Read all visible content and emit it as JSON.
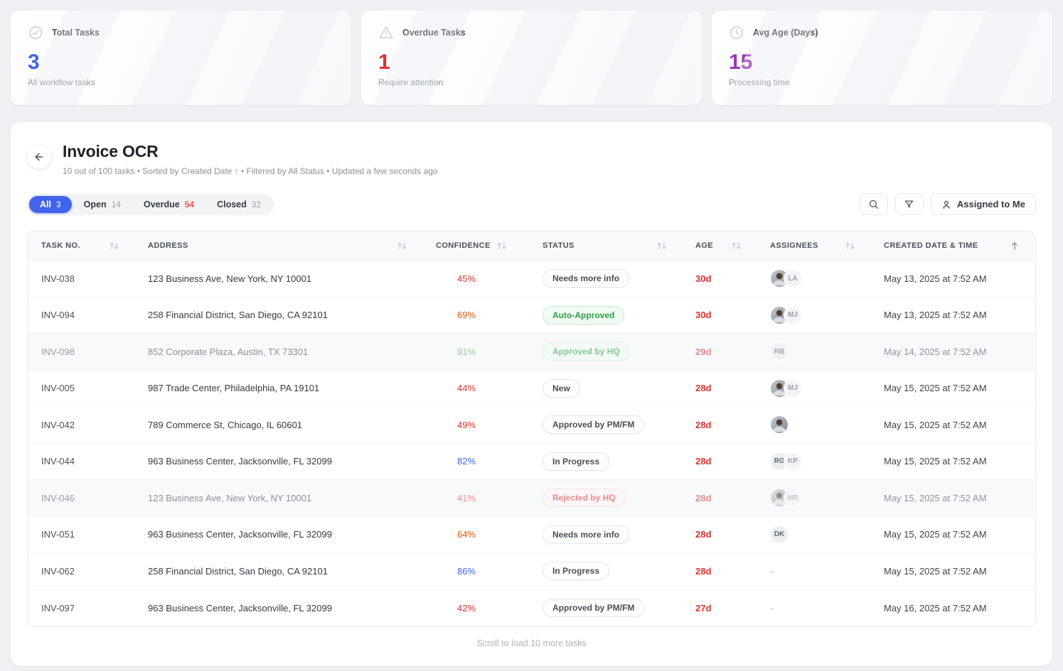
{
  "colors": {
    "accent_blue": "#4263eb",
    "red": "#e03131",
    "orange": "#e8590c",
    "green": "#37b24d",
    "purple": "#9c36b5"
  },
  "stats": [
    {
      "icon": "check-circle-icon",
      "label": "Total Tasks",
      "value": "3",
      "value_color": "#4263eb",
      "sub": "All workflow tasks"
    },
    {
      "icon": "alert-triangle-icon",
      "label": "Overdue Tasks",
      "value": "1",
      "value_color": "#e03131",
      "sub": "Require attention"
    },
    {
      "icon": "clock-icon",
      "label": "Avg Age (Days)",
      "value": "15",
      "value_color": "#9c36b5",
      "sub": "Processing time"
    }
  ],
  "header": {
    "title": "Invoice OCR",
    "subtitle": "10 out of 100 tasks • Sorted by Created Date ↑ • Filtered by All Status • Updated a few seconds ago"
  },
  "tabs": [
    {
      "label": "All",
      "count": "3",
      "active": true,
      "count_color": ""
    },
    {
      "label": "Open",
      "count": "14",
      "active": false,
      "count_color": ""
    },
    {
      "label": "Overdue",
      "count": "54",
      "active": false,
      "count_color": "#fa5252"
    },
    {
      "label": "Closed",
      "count": "32",
      "active": false,
      "count_color": ""
    }
  ],
  "toolbar": {
    "assigned_label": "Assigned to Me"
  },
  "table": {
    "columns": [
      {
        "label": "TASK NO.",
        "sort": "both"
      },
      {
        "label": "ADDRESS",
        "sort": "both"
      },
      {
        "label": "CONFIDENCE",
        "sort": "both"
      },
      {
        "label": "STATUS",
        "sort": "both"
      },
      {
        "label": "AGE",
        "sort": "both"
      },
      {
        "label": "ASSIGNEES",
        "sort": "both"
      },
      {
        "label": "CREATED DATE & TIME",
        "sort": "asc"
      }
    ],
    "rows": [
      {
        "task_no": "INV-038",
        "address": "123 Business Ave, New York, NY 10001",
        "confidence": "45%",
        "confidence_color": "#e03131",
        "status": "Needs more info",
        "status_variant": "neutral",
        "age": "30d",
        "age_color": "#e03131",
        "assignees": [
          {
            "type": "photo"
          },
          {
            "type": "initials",
            "text": "LA"
          }
        ],
        "created": "May 13, 2025 at 7:52 AM",
        "muted": false
      },
      {
        "task_no": "INV-094",
        "address": "258 Financial District, San Diego, CA 92101",
        "confidence": "69%",
        "confidence_color": "#e8590c",
        "status": "Auto-Approved",
        "status_variant": "green",
        "age": "30d",
        "age_color": "#e03131",
        "assignees": [
          {
            "type": "photo"
          },
          {
            "type": "initials",
            "text": "MJ"
          }
        ],
        "created": "May 13, 2025 at 7:52 AM",
        "muted": false
      },
      {
        "task_no": "INV-098",
        "address": "852 Corporate Plaza, Austin, TX 73301",
        "confidence": "91%",
        "confidence_color": "#37b24d",
        "status": "Approved by HQ",
        "status_variant": "green",
        "age": "29d",
        "age_color": "#e03131",
        "assignees": [
          {
            "type": "initials",
            "text": "RB"
          }
        ],
        "created": "May 14, 2025 at 7:52 AM",
        "muted": true
      },
      {
        "task_no": "INV-005",
        "address": "987 Trade Center, Philadelphia, PA 19101",
        "confidence": "44%",
        "confidence_color": "#e03131",
        "status": "New",
        "status_variant": "neutral",
        "age": "28d",
        "age_color": "#e03131",
        "assignees": [
          {
            "type": "photo"
          },
          {
            "type": "initials",
            "text": "MJ"
          }
        ],
        "created": "May 15, 2025 at 7:52 AM",
        "muted": false
      },
      {
        "task_no": "INV-042",
        "address": "789 Commerce St, Chicago, IL 60601",
        "confidence": "49%",
        "confidence_color": "#e03131",
        "status": "Approved by PM/FM",
        "status_variant": "neutral",
        "age": "28d",
        "age_color": "#e03131",
        "assignees": [
          {
            "type": "photo"
          }
        ],
        "created": "May 15, 2025 at 7:52 AM",
        "muted": false
      },
      {
        "task_no": "INV-044",
        "address": "963 Business Center, Jacksonville, FL 32099",
        "confidence": "82%",
        "confidence_color": "#4263eb",
        "status": "In Progress",
        "status_variant": "neutral",
        "age": "28d",
        "age_color": "#e03131",
        "assignees": [
          {
            "type": "initials",
            "text": "RG"
          },
          {
            "type": "initials",
            "text": "KP"
          }
        ],
        "created": "May 15, 2025 at 7:52 AM",
        "muted": false
      },
      {
        "task_no": "INV-046",
        "address": "123 Business Ave, New York, NY 10001",
        "confidence": "41%",
        "confidence_color": "#e03131",
        "status": "Rejected by HQ",
        "status_variant": "red",
        "age": "28d",
        "age_color": "#e03131",
        "assignees": [
          {
            "type": "photo"
          },
          {
            "type": "initials",
            "text": "MR"
          }
        ],
        "created": "May 15, 2025 at 7:52 AM",
        "muted": true
      },
      {
        "task_no": "INV-051",
        "address": "963 Business Center, Jacksonville, FL 32099",
        "confidence": "64%",
        "confidence_color": "#e8590c",
        "status": "Needs more info",
        "status_variant": "neutral",
        "age": "28d",
        "age_color": "#e03131",
        "assignees": [
          {
            "type": "initials",
            "text": "DK"
          }
        ],
        "created": "May 15, 2025 at 7:52 AM",
        "muted": false
      },
      {
        "task_no": "INV-062",
        "address": "258 Financial District, San Diego, CA 92101",
        "confidence": "86%",
        "confidence_color": "#4263eb",
        "status": "In Progress",
        "status_variant": "neutral",
        "age": "28d",
        "age_color": "#e03131",
        "assignees": [],
        "created": "May 15, 2025 at 7:52 AM",
        "muted": false
      },
      {
        "task_no": "INV-097",
        "address": "963 Business Center, Jacksonville, FL 32099",
        "confidence": "42%",
        "confidence_color": "#e03131",
        "status": "Approved by PM/FM",
        "status_variant": "neutral",
        "age": "27d",
        "age_color": "#e03131",
        "assignees": [],
        "created": "May 16, 2025 at 7:52 AM",
        "muted": false
      }
    ],
    "no_assignee_placeholder": "-"
  },
  "footer": {
    "load_more": "Scroll to load 10 more tasks"
  }
}
